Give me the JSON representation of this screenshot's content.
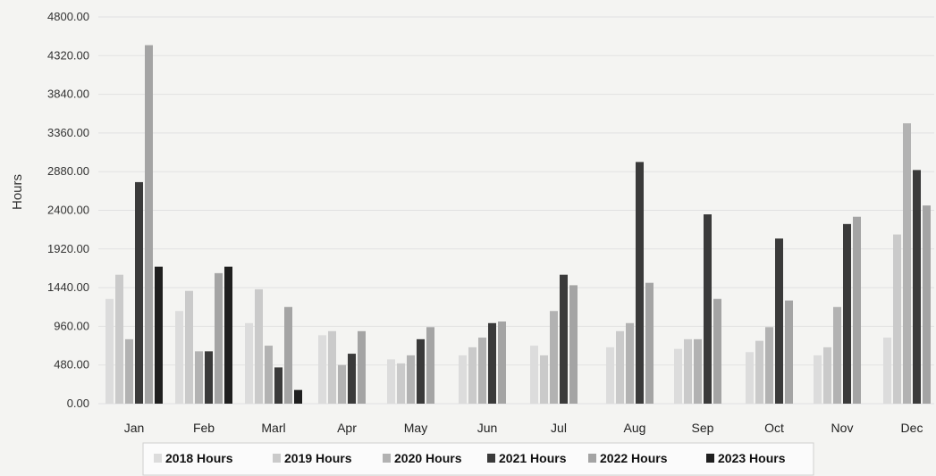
{
  "chart_data": {
    "type": "bar",
    "title": "",
    "xlabel": "",
    "ylabel": "Hours",
    "ylim": [
      0,
      4800
    ],
    "ytick_labels": [
      "0.00",
      "480.00",
      "960.00",
      "1440.00",
      "1920.00",
      "2400.00",
      "2880.00",
      "3360.00",
      "3840.00",
      "4320.00",
      "4800.00"
    ],
    "ytick_values": [
      0,
      480,
      960,
      1440,
      1920,
      2400,
      2880,
      3360,
      3840,
      4320,
      4800
    ],
    "grid": true,
    "legend_position": "bottom",
    "categories": [
      "Jan",
      "Feb",
      "Marl",
      "Apr",
      "May",
      "Jun",
      "Jul",
      "Aug",
      "Sep",
      "Oct",
      "Nov",
      "Dec"
    ],
    "series": [
      {
        "name": "2018 Hours",
        "color": "#dcdcdc",
        "values": [
          1300,
          1150,
          1000,
          850,
          550,
          600,
          720,
          700,
          680,
          640,
          600,
          820
        ]
      },
      {
        "name": "2019 Hours",
        "color": "#cacaca",
        "values": [
          1600,
          1400,
          1420,
          900,
          500,
          700,
          600,
          900,
          800,
          780,
          700,
          2100
        ]
      },
      {
        "name": "2020 Hours",
        "color": "#b2b2b2",
        "values": [
          800,
          650,
          720,
          480,
          600,
          820,
          1150,
          1000,
          800,
          950,
          1200,
          3480
        ]
      },
      {
        "name": "2021 Hours",
        "color": "#3a3a3a",
        "values": [
          2750,
          650,
          450,
          620,
          800,
          1000,
          1600,
          3000,
          2350,
          2050,
          2230,
          2900
        ]
      },
      {
        "name": "2022 Hours",
        "color": "#a4a4a4",
        "values": [
          4450,
          1620,
          1200,
          900,
          950,
          1020,
          1470,
          1500,
          1300,
          1280,
          2320,
          2460
        ]
      },
      {
        "name": "2023 Hours",
        "color": "#1f1f1f",
        "values": [
          1700,
          1700,
          170,
          0,
          0,
          0,
          0,
          0,
          0,
          0,
          0,
          0
        ]
      }
    ]
  }
}
